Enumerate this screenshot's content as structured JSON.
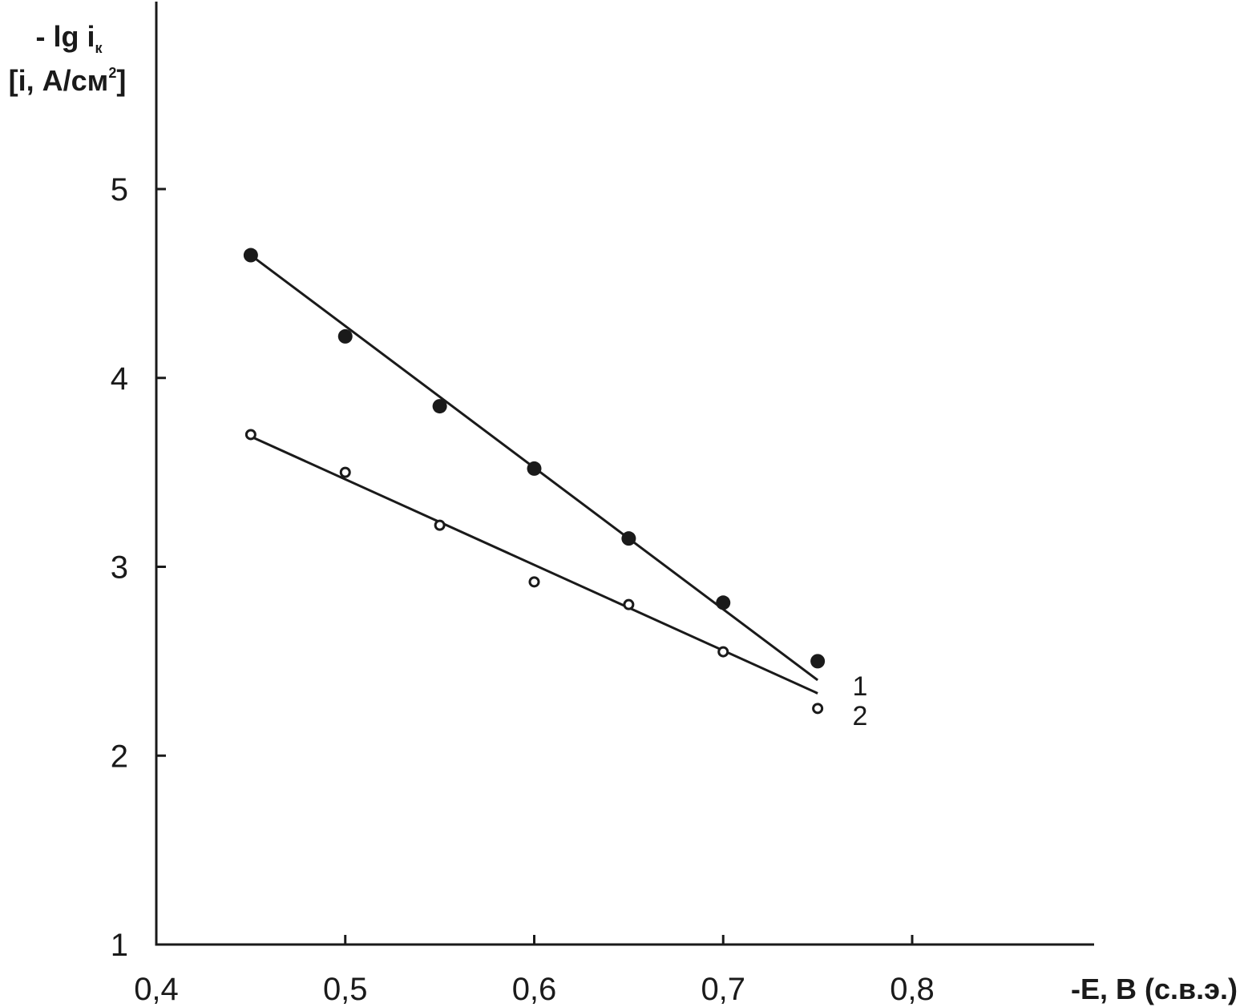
{
  "chart_data": {
    "type": "scatter",
    "title": "",
    "xlabel": "-E, В (с.в.э.)",
    "ylabel": {
      "prefix": "- lg i",
      "subscript": "к",
      "line2_prefix": "[i, А/см",
      "superscript": "2",
      "line2_suffix": "]"
    },
    "xlim": [
      0.4,
      0.9
    ],
    "ylim": [
      1,
      5.9
    ],
    "x_ticks": [
      {
        "value": 0.4,
        "label": "0,4"
      },
      {
        "value": 0.5,
        "label": "0,5"
      },
      {
        "value": 0.6,
        "label": "0,6"
      },
      {
        "value": 0.7,
        "label": "0,7"
      },
      {
        "value": 0.8,
        "label": "0,8"
      }
    ],
    "y_ticks": [
      {
        "value": 1,
        "label": "1"
      },
      {
        "value": 2,
        "label": "2"
      },
      {
        "value": 3,
        "label": "3"
      },
      {
        "value": 4,
        "label": "4"
      },
      {
        "value": 5,
        "label": "5"
      }
    ],
    "grid": false,
    "series": [
      {
        "name": "1",
        "marker": "filled-circle",
        "color": "#1a1a1a",
        "x": [
          0.45,
          0.5,
          0.55,
          0.6,
          0.65,
          0.7,
          0.75
        ],
        "y": [
          4.65,
          4.22,
          3.85,
          3.52,
          3.15,
          2.81,
          2.5
        ],
        "fit": {
          "x": [
            0.45,
            0.75
          ],
          "y": [
            4.65,
            2.4
          ]
        }
      },
      {
        "name": "2",
        "marker": "open-circle",
        "color": "#1a1a1a",
        "x": [
          0.45,
          0.5,
          0.55,
          0.6,
          0.65,
          0.7,
          0.75
        ],
        "y": [
          3.7,
          3.5,
          3.22,
          2.92,
          2.8,
          2.55,
          2.25
        ],
        "fit": {
          "x": [
            0.45,
            0.75
          ],
          "y": [
            3.69,
            2.33
          ]
        }
      }
    ]
  }
}
